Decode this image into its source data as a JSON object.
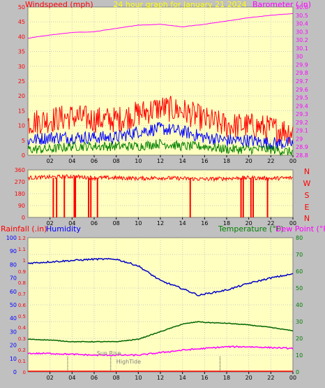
{
  "header": {
    "left_title": "Windspeed (mph)",
    "center_title": "24 hour graph for  January 21 2024",
    "right_title": "Barometer (.in)"
  },
  "colors": {
    "background": "#c0c0c0",
    "plot": "#ffffc0",
    "grid": "#c8c8c8",
    "wind_max": "#ff0000",
    "wind_avg": "#0000ff",
    "wind_min": "#008000",
    "barometer": "#ff00ff",
    "direction": "#ff0000",
    "humidity": "#0000c8",
    "temperature": "#006400",
    "dewpoint": "#ff00ff",
    "rain": "#ff0000",
    "axis_red": "#ff0000",
    "axis_blue": "#0000ff",
    "axis_green": "#008000",
    "axis_magenta": "#ff00ff"
  },
  "bottom_panel": {
    "left_title_rain": "Rainfall (.in)",
    "left_title_humidity": "Humidity",
    "right_title_temp": "Temperature (°F)",
    "right_title_dew": "Dew Point (°F)",
    "annotations": {
      "sunrise": "Sun Rise",
      "hightide": "HighTide"
    }
  },
  "compass_labels": [
    "N",
    "W",
    "S",
    "E",
    "N"
  ],
  "chart_data": [
    {
      "type": "line",
      "title": "24 hour graph for  January 21 2024",
      "x_ticks": [
        "02",
        "04",
        "06",
        "08",
        "10",
        "12",
        "14",
        "16",
        "18",
        "20",
        "22",
        "00"
      ],
      "left_axis": {
        "label": "Windspeed (mph)",
        "ylim": [
          0,
          50
        ],
        "ticks": [
          "0",
          "5",
          "10",
          "15",
          "20",
          "25",
          "30",
          "35",
          "40",
          "45",
          "50"
        ]
      },
      "right_axis": {
        "label": "Barometer (.in)",
        "ylim": [
          28.8,
          30.6
        ],
        "ticks": [
          "28.8",
          "28.9",
          "29",
          "29.1",
          "29.2",
          "29.3",
          "29.4",
          "29.5",
          "29.6",
          "29.7",
          "29.8",
          "29.9",
          "30",
          "30.1",
          "30.2",
          "30.3",
          "30.4",
          "30.5",
          "30.6"
        ]
      },
      "series": [
        {
          "name": "Wind gust",
          "hours": [
            0,
            2,
            4,
            6,
            8,
            10,
            12,
            14,
            16,
            18,
            20,
            22,
            24
          ],
          "values": [
            11,
            12,
            13,
            12,
            12,
            14,
            16,
            15,
            12,
            10,
            10,
            9,
            8
          ]
        },
        {
          "name": "Wind avg",
          "hours": [
            0,
            2,
            4,
            6,
            8,
            10,
            12,
            14,
            16,
            18,
            20,
            22,
            24
          ],
          "values": [
            5,
            6,
            6,
            6,
            6,
            8,
            9,
            8,
            6,
            5,
            5,
            4,
            4
          ]
        },
        {
          "name": "Wind min",
          "hours": [
            0,
            2,
            4,
            6,
            8,
            10,
            12,
            14,
            16,
            18,
            20,
            22,
            24
          ],
          "values": [
            2,
            2,
            3,
            3,
            3,
            3,
            4,
            3,
            3,
            2,
            2,
            2,
            1
          ]
        },
        {
          "name": "Barometer (.in)",
          "hours": [
            0,
            2,
            4,
            6,
            8,
            10,
            12,
            14,
            16,
            18,
            20,
            22,
            24
          ],
          "values": [
            30.22,
            30.26,
            30.29,
            30.3,
            30.34,
            30.38,
            30.39,
            30.36,
            30.39,
            30.43,
            30.47,
            30.5,
            30.52
          ]
        }
      ]
    },
    {
      "type": "line",
      "x_ticks": [
        "02",
        "04",
        "06",
        "08",
        "10",
        "12",
        "14",
        "16",
        "18",
        "20",
        "22",
        "00"
      ],
      "left_axis": {
        "ylim": [
          0,
          360
        ],
        "ticks": [
          "0",
          "90",
          "180",
          "270",
          "360"
        ]
      },
      "right_axis": {
        "labels": [
          "N",
          "W",
          "S",
          "E",
          "N"
        ]
      },
      "series": [
        {
          "name": "Wind direction",
          "hours": [
            0,
            2,
            4,
            6,
            8,
            10,
            12,
            14,
            16,
            18,
            20,
            22,
            24
          ],
          "values": [
            300,
            305,
            310,
            300,
            300,
            295,
            300,
            295,
            290,
            295,
            300,
            295,
            300
          ]
        }
      ],
      "dips_to_zero_hours": [
        2.3,
        2.6,
        3.3,
        4.2,
        4.3,
        5.5,
        5.7,
        6.3,
        14.7,
        19.3,
        19.5,
        20.2,
        20.4,
        21.7
      ]
    },
    {
      "type": "line",
      "x_ticks": [
        "02",
        "04",
        "06",
        "08",
        "10",
        "12",
        "14",
        "16",
        "18",
        "20",
        "22",
        "00"
      ],
      "left_axis": {
        "label": "Rainfall (.in)",
        "ylim": [
          0,
          1.2
        ],
        "ticks": [
          "0",
          "0.1",
          "0.2",
          "0.3",
          "0.4",
          "0.5",
          "0.6",
          "0.7",
          "0.8",
          "0.9",
          "1",
          "1.1",
          "1.2"
        ]
      },
      "left_axis_2": {
        "label": "Humidity",
        "ylim": [
          0,
          100
        ],
        "ticks": [
          "0",
          "10",
          "20",
          "30",
          "40",
          "50",
          "60",
          "70",
          "80",
          "90",
          "100"
        ]
      },
      "right_axis": {
        "label": "Temperature (°F)",
        "ylim": [
          0,
          80
        ],
        "ticks": [
          "0",
          "10",
          "20",
          "30",
          "40",
          "50",
          "60",
          "70",
          "80"
        ]
      },
      "series": [
        {
          "name": "Humidity",
          "axis": "humidity",
          "hours": [
            0,
            2,
            4,
            6,
            8,
            10,
            12,
            14,
            15.5,
            16,
            18,
            20,
            22,
            24
          ],
          "values": [
            81,
            82,
            83,
            84,
            84,
            79,
            68,
            62,
            57,
            58,
            61,
            66,
            70,
            73
          ]
        },
        {
          "name": "Temperature (°F)",
          "axis": "temp",
          "hours": [
            0,
            2,
            4,
            6,
            8,
            10,
            12,
            14,
            15.5,
            16,
            18,
            20,
            22,
            24
          ],
          "values": [
            19.5,
            19,
            18,
            18,
            18,
            19.5,
            24,
            28.5,
            30,
            29.5,
            29,
            28,
            26.5,
            24.5
          ]
        },
        {
          "name": "Dew Point (°F)",
          "axis": "temp",
          "hours": [
            0,
            2,
            4,
            6,
            8,
            10,
            12,
            14,
            16,
            18,
            20,
            22,
            24
          ],
          "values": [
            11,
            11,
            10.5,
            10,
            10,
            10,
            11.5,
            13,
            14,
            15,
            15,
            14.5,
            14
          ]
        },
        {
          "name": "Rainfall (.in)",
          "axis": "rain",
          "hours": [
            0,
            24
          ],
          "values": [
            0,
            0
          ]
        }
      ],
      "markers": [
        {
          "label": "Sun Rise",
          "hour": 7.5
        },
        {
          "label": "HighTide",
          "hour": 17.4
        },
        {
          "label": "",
          "hour": 3.6
        }
      ]
    }
  ]
}
